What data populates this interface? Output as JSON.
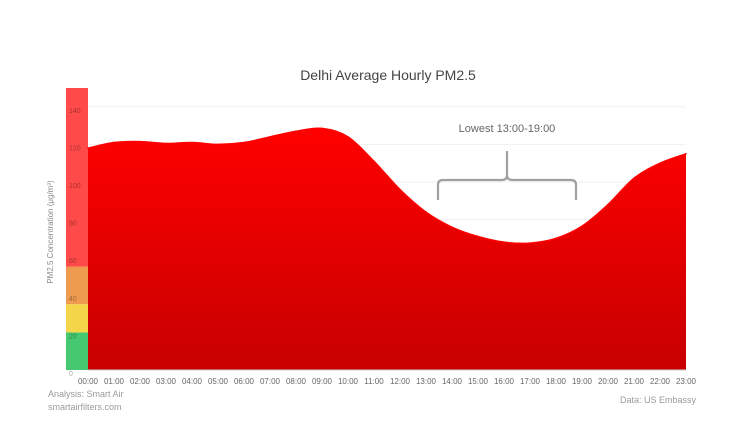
{
  "chart_data": {
    "type": "area",
    "title": "Delhi Average Hourly PM2.5",
    "ylabel": "PM2.5 Concentration (μg/m³)",
    "xlabel": "",
    "ylim": [
      0,
      150
    ],
    "x": [
      "00:00",
      "01:00",
      "02:00",
      "03:00",
      "04:00",
      "05:00",
      "06:00",
      "07:00",
      "08:00",
      "09:00",
      "10:00",
      "11:00",
      "12:00",
      "13:00",
      "14:00",
      "15:00",
      "16:00",
      "17:00",
      "18:00",
      "19:00",
      "20:00",
      "21:00",
      "22:00",
      "23:00"
    ],
    "series": [
      {
        "values": [
          118,
          121,
          121.5,
          120.5,
          121,
          120,
          121,
          124,
          127,
          128.5,
          124,
          111,
          96,
          84,
          76,
          71,
          68,
          67.5,
          70,
          76.5,
          88,
          102,
          110,
          115
        ]
      }
    ],
    "yticks": [
      "0",
      "20",
      "40",
      "60",
      "80",
      "100",
      "120",
      "140"
    ],
    "aqi_bands": [
      {
        "from": 0,
        "to": 20,
        "color": "#46c870"
      },
      {
        "from": 20,
        "to": 35,
        "color": "#f5d54a"
      },
      {
        "from": 35,
        "to": 55,
        "color": "#ee9b50"
      },
      {
        "from": 55,
        "to": 150,
        "color": "#ff4a4a"
      }
    ],
    "annotation": {
      "text": "Lowest 13:00-19:00",
      "from": "13:00",
      "to": "19:00"
    },
    "grid": true,
    "colors": {
      "area_top": "#ff0000",
      "area_bottom": "#c80000",
      "bracket": "#a0a0a0"
    }
  },
  "footer": {
    "analysis_line1": "Analysis:  Smart Air",
    "analysis_line2": "smartairfilters.com",
    "source": "Data: US Embassy"
  }
}
